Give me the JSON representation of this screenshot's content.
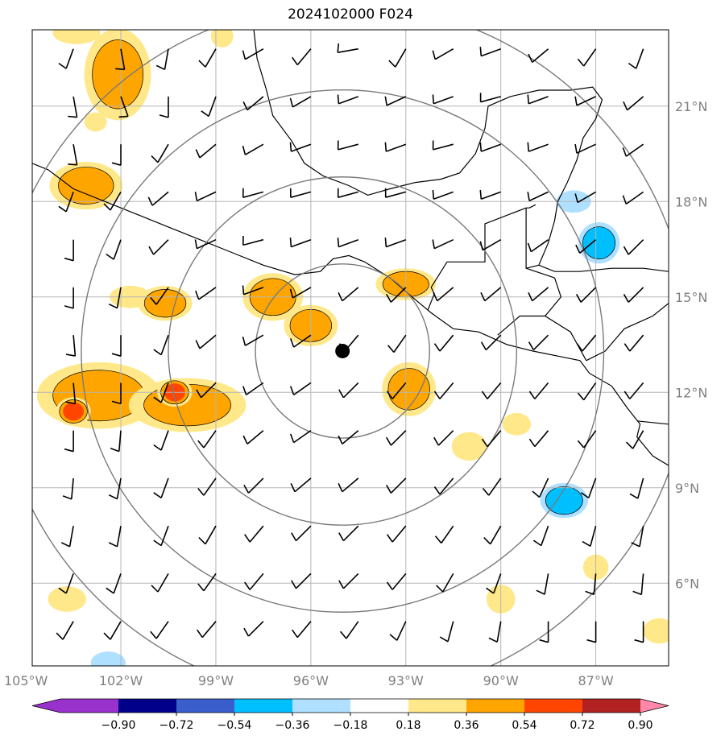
{
  "title": "2024102000 F024",
  "map": {
    "lon_range": [
      -104.8,
      -84.7
    ],
    "lat_range": [
      3.4,
      23.4
    ],
    "lon_ticks": [
      "105°W",
      "102°W",
      "99°W",
      "96°W",
      "93°W",
      "90°W",
      "87°W"
    ],
    "lat_ticks": [
      "21°N",
      "18°N",
      "15°N",
      "12°N",
      "9°N",
      "6°N"
    ],
    "center": {
      "lon": -95.0,
      "lat": 13.3
    },
    "range_rings_deg": [
      2.75,
      5.5,
      8.25,
      11.0
    ],
    "grid": true
  },
  "colorbar": {
    "labels": [
      "−0.90",
      "−0.72",
      "−0.54",
      "−0.36",
      "−0.18",
      "0.18",
      "0.36",
      "0.54",
      "0.72",
      "0.90"
    ],
    "colors": [
      "#9932cc",
      "#00008b",
      "#3a5fcd",
      "#00bfff",
      "#b0e0ff",
      "#ffffff",
      "#ffe88a",
      "#ffa500",
      "#ff4500",
      "#b22222",
      "#ff88aa"
    ]
  },
  "fields": {
    "positive_blobs": [
      {
        "lon": -102.1,
        "lat": 22.0,
        "rx": 0.9,
        "ry": 1.3,
        "level": 2
      },
      {
        "lon": -103.1,
        "lat": 18.5,
        "rx": 1.0,
        "ry": 0.6,
        "level": 2
      },
      {
        "lon": -101.7,
        "lat": 15.0,
        "rx": 0.5,
        "ry": 0.2,
        "level": 1
      },
      {
        "lon": -100.6,
        "lat": 14.8,
        "rx": 0.7,
        "ry": 0.4,
        "level": 2
      },
      {
        "lon": -102.7,
        "lat": 11.9,
        "rx": 1.8,
        "ry": 0.9,
        "level": 2
      },
      {
        "lon": -99.9,
        "lat": 11.6,
        "rx": 1.7,
        "ry": 0.7,
        "level": 2
      },
      {
        "lon": -103.5,
        "lat": 11.4,
        "rx": 0.4,
        "ry": 0.3,
        "level": 3
      },
      {
        "lon": -100.3,
        "lat": 12.0,
        "rx": 0.4,
        "ry": 0.3,
        "level": 3
      },
      {
        "lon": -97.2,
        "lat": 15.0,
        "rx": 0.8,
        "ry": 0.6,
        "level": 2
      },
      {
        "lon": -96.0,
        "lat": 14.1,
        "rx": 0.7,
        "ry": 0.5,
        "level": 2
      },
      {
        "lon": -93.0,
        "lat": 15.4,
        "rx": 0.8,
        "ry": 0.35,
        "level": 2
      },
      {
        "lon": -92.9,
        "lat": 12.1,
        "rx": 0.7,
        "ry": 0.7,
        "level": 2
      },
      {
        "lon": -91.0,
        "lat": 10.3,
        "rx": 0.4,
        "ry": 0.3,
        "level": 1
      },
      {
        "lon": -89.5,
        "lat": 11.0,
        "rx": 0.3,
        "ry": 0.2,
        "level": 1
      },
      {
        "lon": -90.0,
        "lat": 5.5,
        "rx": 0.3,
        "ry": 0.3,
        "level": 1
      },
      {
        "lon": -87.0,
        "lat": 6.5,
        "rx": 0.25,
        "ry": 0.25,
        "level": 1
      },
      {
        "lon": -103.7,
        "lat": 5.5,
        "rx": 0.45,
        "ry": 0.25,
        "level": 1
      },
      {
        "lon": -98.8,
        "lat": 23.2,
        "rx": 0.2,
        "ry": 0.2,
        "level": 1
      },
      {
        "lon": -103.4,
        "lat": 23.3,
        "rx": 0.6,
        "ry": 0.2,
        "level": 1
      },
      {
        "lon": -102.8,
        "lat": 20.5,
        "rx": 0.2,
        "ry": 0.15,
        "level": 1
      },
      {
        "lon": -85.0,
        "lat": 4.5,
        "rx": 0.35,
        "ry": 0.25,
        "level": 1
      }
    ],
    "negative_blobs": [
      {
        "lon": -87.7,
        "lat": 18.0,
        "rx": 0.4,
        "ry": 0.2,
        "level": 1
      },
      {
        "lon": -86.9,
        "lat": 16.7,
        "rx": 0.5,
        "ry": 0.5,
        "level": 2
      },
      {
        "lon": -88.0,
        "lat": 8.6,
        "rx": 0.6,
        "ry": 0.4,
        "level": 2
      },
      {
        "lon": -102.4,
        "lat": 3.5,
        "rx": 0.4,
        "ry": 0.2,
        "level": 1
      }
    ]
  },
  "wind_barbs": {
    "lon_start": -103.5,
    "lon_step": 1.5,
    "lat_start": 22.8,
    "lat_step": -1.5,
    "rows": [
      [
        200,
        170,
        190,
        210,
        240,
        220,
        260,
        210,
        240,
        250,
        230,
        215,
        200,
        220
      ],
      [
        170,
        160,
        180,
        200,
        230,
        240,
        250,
        245,
        250,
        255,
        250,
        245,
        230,
        230
      ],
      [
        170,
        180,
        210,
        230,
        240,
        250,
        255,
        250,
        255,
        250,
        250,
        245,
        235,
        230
      ],
      [
        200,
        210,
        230,
        245,
        255,
        255,
        255,
        255,
        250,
        250,
        245,
        240,
        235,
        230
      ],
      [
        180,
        200,
        225,
        245,
        255,
        250,
        250,
        250,
        245,
        240,
        235,
        230,
        225,
        225
      ],
      [
        180,
        190,
        215,
        235,
        250,
        240,
        230,
        225,
        230,
        230,
        230,
        225,
        225,
        225
      ],
      [
        175,
        180,
        200,
        230,
        240,
        235,
        220,
        215,
        220,
        225,
        225,
        220,
        220,
        225
      ],
      [
        175,
        180,
        200,
        225,
        235,
        235,
        225,
        220,
        220,
        220,
        220,
        215,
        220,
        220
      ],
      [
        180,
        185,
        200,
        215,
        230,
        235,
        230,
        225,
        225,
        220,
        220,
        215,
        210,
        215
      ],
      [
        185,
        190,
        200,
        215,
        225,
        230,
        230,
        225,
        220,
        215,
        205,
        200,
        195,
        200
      ],
      [
        190,
        190,
        200,
        210,
        220,
        225,
        225,
        220,
        215,
        210,
        200,
        195,
        190,
        195
      ],
      [
        200,
        200,
        210,
        215,
        220,
        225,
        225,
        220,
        210,
        200,
        190,
        185,
        185,
        190
      ],
      [
        210,
        210,
        215,
        220,
        225,
        220,
        215,
        205,
        195,
        190,
        180,
        180,
        180,
        185
      ],
      [
        215,
        215,
        220,
        220,
        220,
        215,
        205,
        195,
        185,
        180,
        175,
        175,
        175,
        180
      ]
    ]
  }
}
